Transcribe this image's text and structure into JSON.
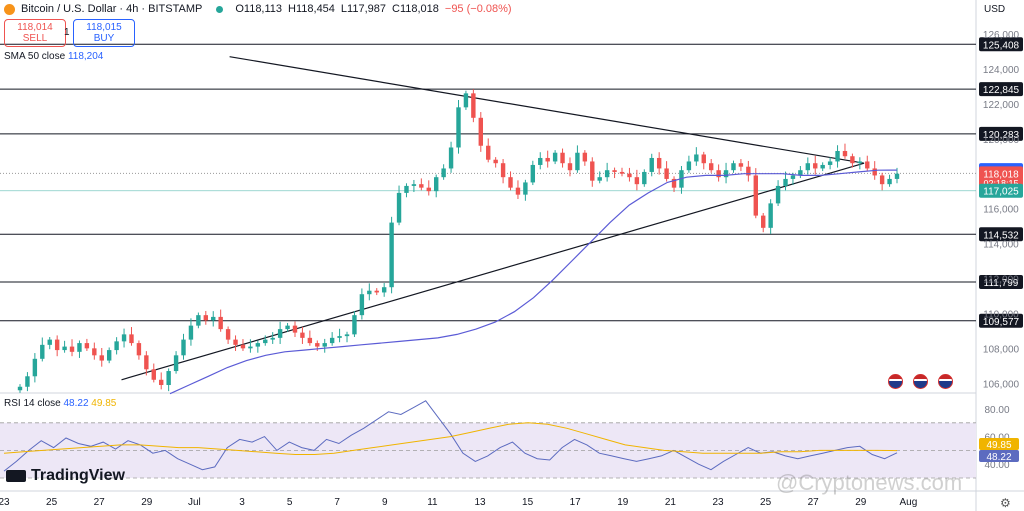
{
  "header": {
    "symbol": "Bitcoin / U.S. Dollar · 4h · BITSTAMP",
    "open": "O118,113",
    "high": "H118,454",
    "low": "L117,987",
    "close": "C118,018",
    "change": "−95 (−0.08%)"
  },
  "trade": {
    "sell_price": "118,014",
    "sell_label": "SELL",
    "qty": "1",
    "buy_price": "118,015",
    "buy_label": "BUY"
  },
  "currency": "USD",
  "sma_legend": {
    "label": "SMA 50 close",
    "value": "118,204"
  },
  "rsi_legend": {
    "label": "RSI 14 close",
    "value": "48.22",
    "ma_value": "49.85"
  },
  "branding": {
    "logo": "TradingView",
    "watermark": "@Cryptonews.com"
  },
  "colors": {
    "up": "#26a69a",
    "down": "#ef5350",
    "sma": "#5b5bd6",
    "rsi": "#5c6bc0",
    "rsi_ma": "#f0b400",
    "rsi_band": "#ede7f6"
  },
  "chart_data": {
    "type": "candlestick",
    "timeframe": "4h",
    "price_axis": {
      "min": 105500,
      "max": 126800,
      "ticks": [
        106000,
        108000,
        110000,
        112000,
        114000,
        116000,
        118000,
        120000,
        122000,
        124000,
        126000
      ]
    },
    "time_axis": {
      "labels": [
        "23",
        "25",
        "27",
        "29",
        "Jul",
        "3",
        "5",
        "7",
        "9",
        "11",
        "13",
        "15",
        "17",
        "19",
        "21",
        "23",
        "25",
        "27",
        "29",
        "Aug"
      ]
    },
    "horizontal_levels": [
      {
        "value": 125408,
        "label": "125,408"
      },
      {
        "value": 122845,
        "label": "122,845"
      },
      {
        "value": 120283,
        "label": "120,283"
      },
      {
        "value": 114532,
        "label": "114,532"
      },
      {
        "value": 111799,
        "label": "111,799"
      },
      {
        "value": 109577,
        "label": "109,577"
      }
    ],
    "price_labels": [
      {
        "value": 118204,
        "label": "118,204",
        "color": "#2962ff"
      },
      {
        "value": 118018,
        "label": "118,018",
        "sub": "02:18:15",
        "color": "#ef5350"
      },
      {
        "value": 117025,
        "label": "117,025",
        "color": "#26a69a"
      }
    ],
    "trendlines": [
      {
        "from": {
          "day": 9.6,
          "price": 124700
        },
        "to": {
          "day": 36.6,
          "price": 118600
        }
      },
      {
        "from": {
          "day": 5.0,
          "price": 106200
        },
        "to": {
          "day": 36.6,
          "price": 118600
        }
      }
    ],
    "candles_approx_closes": [
      105800,
      106400,
      107400,
      108200,
      108500,
      107900,
      108100,
      107800,
      108300,
      108000,
      107600,
      107300,
      107900,
      108400,
      108800,
      108300,
      107600,
      106800,
      106200,
      105900,
      106700,
      107600,
      108500,
      109300,
      109900,
      109600,
      109800,
      109100,
      108500,
      108200,
      108000,
      108100,
      108300,
      108500,
      108600,
      109100,
      109300,
      108900,
      108600,
      108300,
      108100,
      108300,
      108600,
      108700,
      108800,
      109900,
      111100,
      111300,
      111200,
      111500,
      115200,
      116900,
      117300,
      117400,
      117200,
      117000,
      117800,
      118300,
      119500,
      121800,
      122600,
      121200,
      119600,
      118800,
      118600,
      117800,
      117200,
      116800,
      117500,
      118500,
      118900,
      118700,
      119200,
      118600,
      118200,
      119200,
      118700,
      117600,
      117800,
      118200,
      118100,
      118000,
      117800,
      117400,
      118100,
      118900,
      118300,
      117700,
      117200,
      118200,
      118700,
      119100,
      118600,
      118200,
      117800,
      118200,
      118600,
      118400,
      117900,
      115600,
      114900,
      116300,
      117300,
      117700,
      117900,
      118200,
      118600,
      118300,
      118500,
      118700,
      119300,
      119000,
      118600,
      118700,
      118300,
      117900,
      117400,
      117700,
      118000
    ],
    "sma50_approx": [
      105400,
      105900,
      106400,
      106900,
      107300,
      107600,
      107800,
      107900,
      108000,
      108100,
      108200,
      108300,
      108400,
      108500,
      108600,
      108800,
      109100,
      109500,
      110100,
      110900,
      111900,
      113000,
      114100,
      115200,
      116200,
      116900,
      117500,
      117800,
      117900,
      117900,
      118000,
      118000,
      118000,
      117900,
      117900,
      118000,
      118100,
      118200,
      118204
    ],
    "rsi": {
      "axis_ticks": [
        80,
        60,
        40
      ],
      "upper_band": 70,
      "lower_band": 30,
      "approx_values": [
        35,
        42,
        50,
        57,
        52,
        59,
        55,
        53,
        56,
        51,
        57,
        54,
        48,
        50,
        44,
        40,
        36,
        38,
        52,
        58,
        56,
        60,
        50,
        56,
        52,
        50,
        58,
        55,
        61,
        66,
        72,
        78,
        76,
        81,
        86,
        74,
        62,
        48,
        42,
        46,
        52,
        56,
        48,
        44,
        43,
        52,
        58,
        54,
        48,
        46,
        44,
        42,
        44,
        46,
        50,
        45,
        40,
        36,
        42,
        47,
        52,
        48,
        49,
        46,
        44,
        46,
        48,
        50,
        52,
        53,
        47,
        44,
        48.22
      ],
      "ma_approx": [
        48,
        49,
        50,
        51,
        52,
        53,
        54,
        54,
        53,
        52,
        52,
        51,
        50,
        49,
        48,
        47,
        47,
        48,
        50,
        52,
        54,
        56,
        58,
        60,
        63,
        66,
        69,
        70,
        69,
        66,
        62,
        58,
        54,
        52,
        50,
        49,
        48,
        48,
        48,
        48,
        49,
        49,
        50,
        50,
        50,
        50,
        49.85
      ]
    }
  }
}
